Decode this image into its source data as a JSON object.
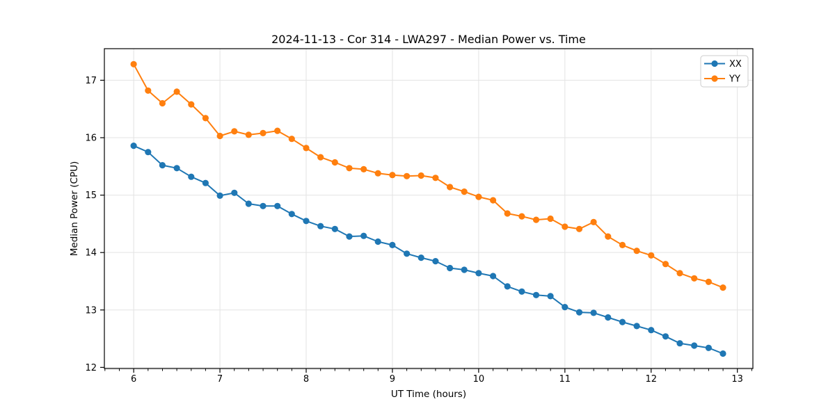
{
  "figure": {
    "background": "#ffffff"
  },
  "chart_data": {
    "type": "line",
    "title": "2024-11-13 - Cor 314 - LWA297 - Median Power vs. Time",
    "xlabel": "UT Time (hours)",
    "ylabel": "Median Power (CPU)",
    "x": [
      6.0,
      6.167,
      6.333,
      6.5,
      6.667,
      6.833,
      7.0,
      7.167,
      7.333,
      7.5,
      7.667,
      7.833,
      8.0,
      8.167,
      8.333,
      8.5,
      8.667,
      8.833,
      9.0,
      9.167,
      9.333,
      9.5,
      9.667,
      9.833,
      10.0,
      10.167,
      10.333,
      10.5,
      10.667,
      10.833,
      11.0,
      11.167,
      11.333,
      11.5,
      11.667,
      11.833,
      12.0,
      12.167,
      12.333,
      12.5,
      12.667,
      12.833
    ],
    "series": [
      {
        "name": "XX",
        "color": "#1f77b4",
        "values": [
          15.86,
          15.75,
          15.52,
          15.47,
          15.32,
          15.21,
          14.99,
          15.04,
          14.85,
          14.81,
          14.81,
          14.67,
          14.55,
          14.46,
          14.41,
          14.28,
          14.29,
          14.19,
          14.13,
          13.98,
          13.91,
          13.85,
          13.73,
          13.7,
          13.64,
          13.59,
          13.41,
          13.32,
          13.26,
          13.24,
          13.05,
          12.96,
          12.95,
          12.87,
          12.79,
          12.72,
          12.65,
          12.54,
          12.42,
          12.38,
          12.34,
          12.24
        ]
      },
      {
        "name": "YY",
        "color": "#ff7f0e",
        "values": [
          17.28,
          16.82,
          16.6,
          16.8,
          16.58,
          16.34,
          16.03,
          16.11,
          16.05,
          16.08,
          16.12,
          15.98,
          15.82,
          15.66,
          15.57,
          15.47,
          15.45,
          15.38,
          15.35,
          15.33,
          15.34,
          15.3,
          15.14,
          15.06,
          14.97,
          14.91,
          14.68,
          14.63,
          14.57,
          14.59,
          14.45,
          14.41,
          14.53,
          14.28,
          14.13,
          14.03,
          13.95,
          13.8,
          13.64,
          13.55,
          13.49,
          13.39
        ]
      }
    ],
    "xlim": [
      5.66,
      13.18
    ],
    "ylim": [
      11.98,
      17.55
    ],
    "xticks": [
      6,
      7,
      8,
      9,
      10,
      11,
      12,
      13
    ],
    "yticks": [
      12,
      13,
      14,
      15,
      16,
      17
    ],
    "x_minor_step": 0.16667,
    "grid": true,
    "grid_color": "#e3e3e3",
    "axis_color": "#000000",
    "legend_position": "upper right",
    "legend_border_color": "#cccccc",
    "marker": "circle"
  }
}
